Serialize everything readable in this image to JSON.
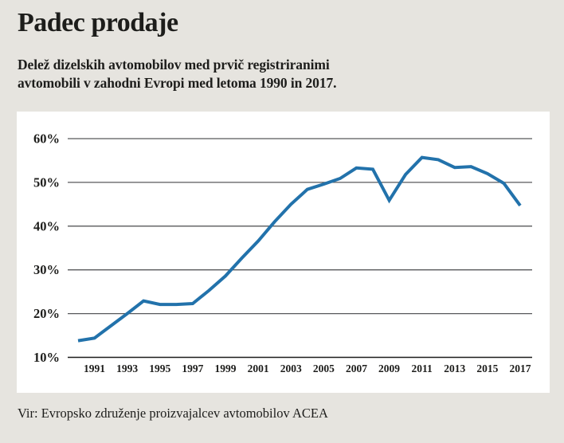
{
  "page": {
    "title": "Padec prodaje",
    "subtitle_line1": "Delež dizelskih avtomobilov med prvič registriranimi",
    "subtitle_line2": "avtomobili v zahodni Evropi med letoma 1990 in 2017.",
    "source": "Vir: Evropsko združenje proizvajalcev avtomobilov ACEA",
    "colors": {
      "background": "#e6e4df",
      "panel": "#ffffff",
      "line": "#2272ab",
      "grid": "#58595b",
      "axis": "#1d1d1b",
      "text": "#1d1d1b"
    }
  },
  "chart_data": {
    "type": "line",
    "title": "Padec prodaje",
    "xlabel": "",
    "ylabel": "",
    "x": [
      1990,
      1991,
      1992,
      1993,
      1994,
      1995,
      1996,
      1997,
      1998,
      1999,
      2000,
      2001,
      2002,
      2003,
      2004,
      2005,
      2006,
      2007,
      2008,
      2009,
      2010,
      2011,
      2012,
      2013,
      2014,
      2015,
      2016,
      2017
    ],
    "series": [
      {
        "name": "Delež dizelskih avtomobilov med prvič registriranimi avtomobili",
        "values": [
          13.8,
          14.4,
          17.2,
          20.0,
          22.9,
          22.1,
          22.1,
          22.3,
          25.3,
          28.6,
          32.7,
          36.6,
          41.0,
          45.0,
          48.4,
          49.6,
          50.9,
          53.3,
          53.0,
          45.9,
          51.8,
          55.7,
          55.2,
          53.4,
          53.6,
          52.0,
          49.8,
          44.7
        ]
      }
    ],
    "ylim": [
      10,
      60
    ],
    "yticks": [
      60,
      50,
      40,
      30,
      20,
      10
    ],
    "ytick_labels": [
      "60%",
      "50%",
      "40%",
      "30%",
      "20%",
      "10%"
    ],
    "xticks": [
      1991,
      1993,
      1995,
      1997,
      1999,
      2001,
      2003,
      2005,
      2007,
      2009,
      2011,
      2013,
      2015,
      2017
    ],
    "grid": true,
    "legend": false
  }
}
